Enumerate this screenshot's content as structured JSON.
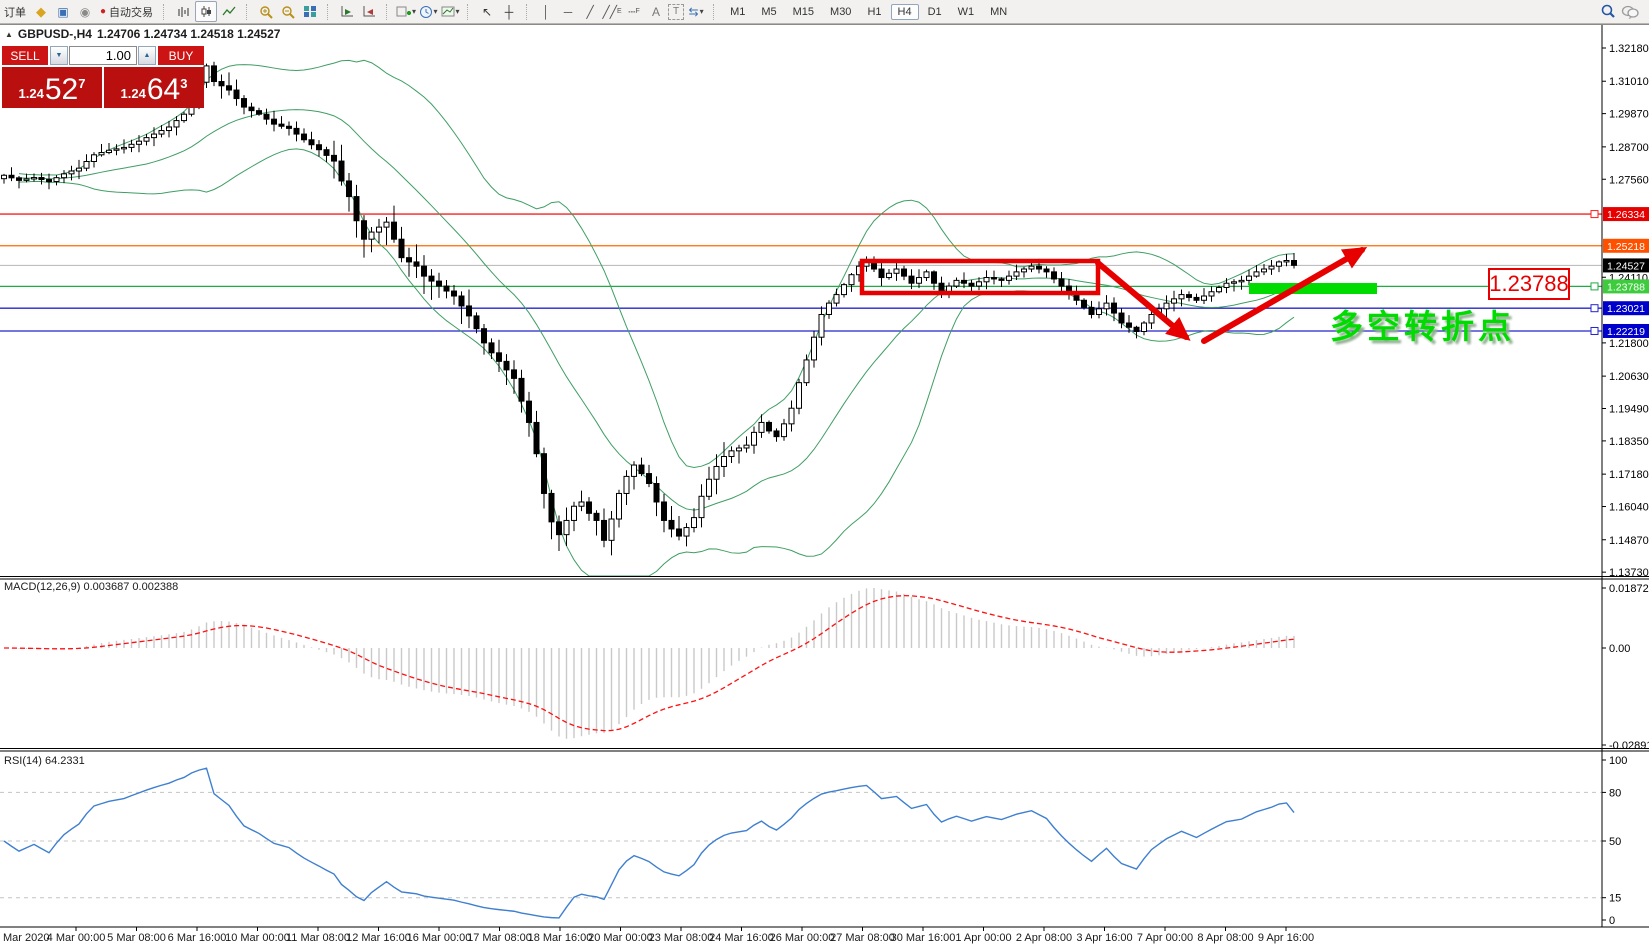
{
  "header": {
    "symbol_title": "GBPUSD-,H4",
    "ohlc_values": "1.24706 1.24734 1.24518 1.24527"
  },
  "toolbar": {
    "new_order_label": "订单",
    "autotrading_label": "自动交易",
    "timeframes": [
      "M1",
      "M5",
      "M15",
      "M30",
      "H1",
      "H4",
      "D1",
      "W1",
      "MN"
    ],
    "active_timeframe": "H4",
    "icons": [
      "order-book-icon",
      "chart-window-icon",
      "signals-icon",
      "autotrading-icon",
      "bar-chart-icon",
      "candlestick-chart-icon",
      "line-chart-icon",
      "zoom-in-icon",
      "zoom-out-icon",
      "tile-windows-icon",
      "auto-scroll-icon",
      "chart-shift-icon",
      "new-chart-icon",
      "periods-icon",
      "templates-icon",
      "cursor-icon",
      "crosshair-icon",
      "vertical-line-icon",
      "horizontal-line-icon",
      "trendline-icon",
      "equidistant-channel-icon",
      "fibonacci-icon",
      "text-icon",
      "text-label-icon",
      "arrows-icon",
      "search-icon",
      "chat-icon"
    ]
  },
  "trade_panel": {
    "sell_label": "SELL",
    "buy_label": "BUY",
    "amount": "1.00",
    "sell_price_small": "1.24",
    "sell_price_big": "52",
    "sell_price_sup": "7",
    "buy_price_small": "1.24",
    "buy_price_big": "64",
    "buy_price_sup": "3"
  },
  "indicator_labels": {
    "macd": "MACD(12,26,9) 0.003687 0.002388",
    "rsi": "RSI(14) 64.2331"
  },
  "annotations": {
    "price_callout": "1.23788",
    "chinese_text": "多空转折点"
  },
  "chart_data": {
    "type": "candlestick",
    "symbol": "GBPUSD",
    "timeframe": "H4",
    "bars": 173,
    "price_ticks": [
      1.3218,
      1.3101,
      1.2987,
      1.287,
      1.2756,
      1.2411,
      1.218,
      1.2063,
      1.1949,
      1.1835,
      1.1718,
      1.1604,
      1.1487,
      1.1373
    ],
    "hlines": [
      {
        "price": 1.26334,
        "line_color": "#f52020",
        "label_bg": "#e60000"
      },
      {
        "price": 1.25218,
        "line_color": "#ff6a00",
        "label_bg": "#ff5000"
      },
      {
        "price": 1.24527,
        "line_color": "#b4b4b4",
        "label_bg": "#000000"
      },
      {
        "price": 1.23788,
        "line_color": "#22aa44",
        "label_bg": "#3ecc3e"
      },
      {
        "price": 1.23021,
        "line_color": "#2424cc",
        "label_bg": "#0000cc"
      },
      {
        "price": 1.22219,
        "line_color": "#2424cc",
        "label_bg": "#0000cc"
      }
    ],
    "close_anchors": [
      [
        0,
        1.277
      ],
      [
        2,
        1.2752
      ],
      [
        4,
        1.2762
      ],
      [
        6,
        1.2748
      ],
      [
        8,
        1.2775
      ],
      [
        10,
        1.2795
      ],
      [
        12,
        1.2842
      ],
      [
        14,
        1.2858
      ],
      [
        16,
        1.2868
      ],
      [
        18,
        1.289
      ],
      [
        20,
        1.2915
      ],
      [
        22,
        1.294
      ],
      [
        24,
        1.2985
      ],
      [
        25,
        1.304
      ],
      [
        27,
        1.3155
      ],
      [
        28,
        1.31
      ],
      [
        30,
        1.307
      ],
      [
        32,
        1.301
      ],
      [
        34,
        1.2985
      ],
      [
        36,
        1.295
      ],
      [
        38,
        1.2935
      ],
      [
        40,
        1.2895
      ],
      [
        42,
        1.286
      ],
      [
        44,
        1.282
      ],
      [
        45,
        1.275
      ],
      [
        46,
        1.2695
      ],
      [
        47,
        1.261
      ],
      [
        48,
        1.2545
      ],
      [
        49,
        1.257
      ],
      [
        51,
        1.2605
      ],
      [
        52,
        1.2545
      ],
      [
        53,
        1.248
      ],
      [
        55,
        1.245
      ],
      [
        56,
        1.2415
      ],
      [
        58,
        1.238
      ],
      [
        60,
        1.2345
      ],
      [
        61,
        1.231
      ],
      [
        62,
        1.2275
      ],
      [
        63,
        1.223
      ],
      [
        64,
        1.218
      ],
      [
        65,
        1.2145
      ],
      [
        66,
        1.2115
      ],
      [
        67,
        1.2085
      ],
      [
        68,
        1.2055
      ],
      [
        69,
        1.1975
      ],
      [
        70,
        1.19
      ],
      [
        71,
        1.179
      ],
      [
        72,
        1.165
      ],
      [
        73,
        1.155
      ],
      [
        74,
        1.1505
      ],
      [
        75,
        1.1555
      ],
      [
        76,
        1.1605
      ],
      [
        77,
        1.162
      ],
      [
        78,
        1.158
      ],
      [
        79,
        1.1555
      ],
      [
        80,
        1.1485
      ],
      [
        81,
        1.156
      ],
      [
        82,
        1.165
      ],
      [
        83,
        1.171
      ],
      [
        84,
        1.175
      ],
      [
        85,
        1.172
      ],
      [
        86,
        1.1685
      ],
      [
        87,
        1.162
      ],
      [
        88,
        1.1555
      ],
      [
        89,
        1.1525
      ],
      [
        90,
        1.15
      ],
      [
        91,
        1.153
      ],
      [
        92,
        1.1565
      ],
      [
        93,
        1.164
      ],
      [
        94,
        1.17
      ],
      [
        95,
        1.1745
      ],
      [
        96,
        1.178
      ],
      [
        97,
        1.18
      ],
      [
        99,
        1.182
      ],
      [
        100,
        1.1865
      ],
      [
        101,
        1.19
      ],
      [
        102,
        1.187
      ],
      [
        103,
        1.185
      ],
      [
        104,
        1.1895
      ],
      [
        105,
        1.195
      ],
      [
        106,
        1.204
      ],
      [
        107,
        1.212
      ],
      [
        108,
        1.22
      ],
      [
        109,
        1.228
      ],
      [
        110,
        1.232
      ],
      [
        111,
        1.235
      ],
      [
        112,
        1.2385
      ],
      [
        113,
        1.242
      ],
      [
        114,
        1.245
      ],
      [
        115,
        1.2468
      ],
      [
        116,
        1.244
      ],
      [
        117,
        1.241
      ],
      [
        118,
        1.2425
      ],
      [
        119,
        1.244
      ],
      [
        120,
        1.2415
      ],
      [
        121,
        1.239
      ],
      [
        122,
        1.241
      ],
      [
        123,
        1.243
      ],
      [
        124,
        1.239
      ],
      [
        125,
        1.2355
      ],
      [
        126,
        1.238
      ],
      [
        127,
        1.24
      ],
      [
        128,
        1.239
      ],
      [
        129,
        1.238
      ],
      [
        130,
        1.2395
      ],
      [
        131,
        1.241
      ],
      [
        132,
        1.2405
      ],
      [
        133,
        1.24
      ],
      [
        134,
        1.2415
      ],
      [
        135,
        1.243
      ],
      [
        136,
        1.244
      ],
      [
        137,
        1.245
      ],
      [
        138,
        1.244
      ],
      [
        139,
        1.243
      ],
      [
        140,
        1.2405
      ],
      [
        141,
        1.238
      ],
      [
        142,
        1.2355
      ],
      [
        143,
        1.233
      ],
      [
        144,
        1.2305
      ],
      [
        145,
        1.228
      ],
      [
        146,
        1.23
      ],
      [
        147,
        1.232
      ],
      [
        148,
        1.2285
      ],
      [
        149,
        1.225
      ],
      [
        150,
        1.2235
      ],
      [
        151,
        1.222
      ],
      [
        152,
        1.225
      ],
      [
        153,
        1.228
      ],
      [
        154,
        1.23
      ],
      [
        155,
        1.232
      ],
      [
        156,
        1.2335
      ],
      [
        157,
        1.235
      ],
      [
        158,
        1.234
      ],
      [
        159,
        1.233
      ],
      [
        160,
        1.2345
      ],
      [
        161,
        1.236
      ],
      [
        162,
        1.2375
      ],
      [
        163,
        1.239
      ],
      [
        164,
        1.2395
      ],
      [
        165,
        1.24
      ],
      [
        166,
        1.2415
      ],
      [
        167,
        1.243
      ],
      [
        168,
        1.244
      ],
      [
        169,
        1.245
      ],
      [
        170,
        1.2465
      ],
      [
        171,
        1.247
      ],
      [
        172,
        1.2453
      ]
    ],
    "bollinger": {
      "period": 20,
      "deviation": 2,
      "color": "#3f9e63"
    },
    "macd": {
      "fast": 12,
      "slow": 26,
      "signal": 9,
      "scale_labels": [
        "0.018721",
        "0.00",
        "-0.028913"
      ],
      "histogram_color": "#c9c9c9",
      "signal_color": "#ff1010"
    },
    "rsi": {
      "period": 14,
      "levels": [
        80,
        50,
        15
      ],
      "scale_labels": [
        "100",
        "80",
        "50",
        "15",
        "0"
      ],
      "line_color": "#3e7fd0",
      "last_value": 64.2331
    },
    "time_labels": [
      "Mar 2020",
      "4 Mar 00:00",
      "5 Mar 08:00",
      "6 Mar 16:00",
      "10 Mar 00:00",
      "11 Mar 08:00",
      "12 Mar 16:00",
      "16 Mar 00:00",
      "17 Mar 08:00",
      "18 Mar 16:00",
      "20 Mar 00:00",
      "23 Mar 08:00",
      "24 Mar 16:00",
      "26 Mar 00:00",
      "27 Mar 08:00",
      "30 Mar 16:00",
      "1 Apr 00:00",
      "2 Apr 08:00",
      "3 Apr 16:00",
      "7 Apr 00:00",
      "8 Apr 08:00",
      "9 Apr 16:00"
    ],
    "drawn_shapes": [
      "red-consolidation-box",
      "red-down-arrow",
      "red-up-arrow",
      "green-highlight-bar",
      "price-callout-box",
      "chinese-annotation"
    ]
  }
}
